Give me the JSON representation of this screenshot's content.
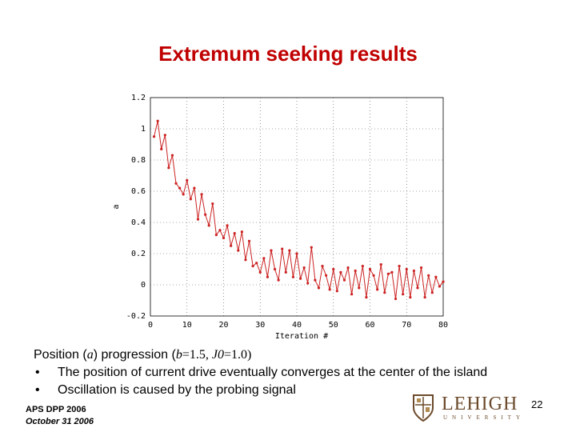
{
  "slide": {
    "title": "Extremum seeking results",
    "caption_prefix": "Position (",
    "caption_var_a": "a",
    "caption_mid": ") progression (",
    "caption_b": "b",
    "caption_b_val": "=1.5, ",
    "caption_j0": "J0",
    "caption_j0_val": "=1.0)",
    "bullets": [
      "The position of current drive eventually converges at the center of the island",
      "Oscillation is caused by the probing signal"
    ],
    "bullet_glyph": "•",
    "footer_line1": "APS DPP 2006",
    "footer_line2": "October 31 2006",
    "page_number": "22",
    "logo_word": "LEHIGH",
    "logo_sub": "UNIVERSITY"
  },
  "chart_data": {
    "type": "line",
    "xlabel": "Iteration #",
    "ylabel": "a",
    "xlim": [
      0,
      80
    ],
    "ylim": [
      -0.2,
      1.2
    ],
    "xticks": [
      0,
      10,
      20,
      30,
      40,
      50,
      60,
      70,
      80
    ],
    "yticks": [
      -0.2,
      0,
      0.2,
      0.4,
      0.6,
      0.8,
      1,
      1.2
    ],
    "ytick_labels": [
      "-0.2",
      "0",
      "0.2",
      "0.4",
      "0.6",
      "0.8",
      "1",
      "1.2"
    ],
    "grid": true,
    "color": "#cc2222",
    "series": [
      {
        "x": [
          1,
          2,
          3,
          4,
          5,
          6,
          7,
          8,
          9,
          10,
          11,
          12,
          13,
          14,
          15,
          16,
          17,
          18,
          19,
          20,
          21,
          22,
          23,
          24,
          25,
          26,
          27,
          28,
          29,
          30,
          31,
          32,
          33,
          34,
          35,
          36,
          37,
          38,
          39,
          40,
          41,
          42,
          43,
          44,
          45,
          46,
          47,
          48,
          49,
          50,
          51,
          52,
          53,
          54,
          55,
          56,
          57,
          58,
          59,
          60,
          61,
          62,
          63,
          64,
          65,
          66,
          67,
          68,
          69,
          70,
          71,
          72,
          73,
          74,
          75,
          76,
          77,
          78,
          79,
          80
        ],
        "y": [
          0.95,
          1.05,
          0.87,
          0.96,
          0.75,
          0.83,
          0.65,
          0.62,
          0.58,
          0.67,
          0.55,
          0.62,
          0.42,
          0.58,
          0.45,
          0.38,
          0.52,
          0.32,
          0.35,
          0.3,
          0.38,
          0.25,
          0.33,
          0.22,
          0.34,
          0.16,
          0.28,
          0.12,
          0.14,
          0.08,
          0.17,
          0.05,
          0.22,
          0.1,
          0.03,
          0.23,
          0.08,
          0.22,
          0.05,
          0.2,
          0.04,
          0.11,
          0.01,
          0.24,
          0.03,
          -0.02,
          0.12,
          0.06,
          -0.03,
          0.1,
          -0.04,
          0.08,
          0.03,
          0.11,
          -0.06,
          0.09,
          -0.02,
          0.12,
          -0.08,
          0.1,
          0.06,
          -0.03,
          0.13,
          -0.05,
          0.07,
          0.08,
          -0.09,
          0.12,
          -0.06,
          0.1,
          -0.08,
          0.09,
          -0.02,
          0.11,
          -0.08,
          0.06,
          -0.05,
          0.05,
          -0.01,
          0.02
        ]
      }
    ]
  }
}
